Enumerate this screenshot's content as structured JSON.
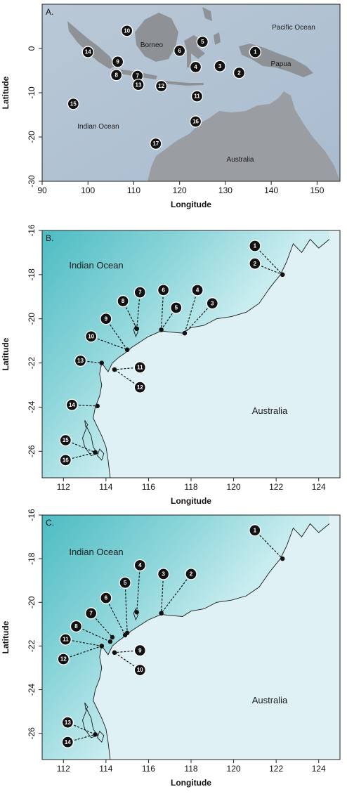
{
  "colors": {
    "ocean_shallow": "#d6eef2",
    "ocean_deep": "#5cc3c9",
    "land": "#cfd3d6",
    "land_dark": "#8d9296",
    "marker": "#111111"
  },
  "panelA": {
    "label": "A.",
    "xlabel": "Longitude",
    "ylabel": "Latitude",
    "xticks": [
      "90",
      "100",
      "110",
      "120",
      "130",
      "140",
      "150"
    ],
    "yticks": [
      "0",
      "-10",
      "-20",
      "-30"
    ],
    "regions": [
      "Pacific Ocean",
      "Borneo",
      "Papua",
      "Indian Ocean",
      "Australia"
    ],
    "sites": [
      {
        "n": "1",
        "lon": 136.5,
        "lat": -0.8
      },
      {
        "n": "2",
        "lon": 133.0,
        "lat": -5.5
      },
      {
        "n": "3",
        "lon": 128.8,
        "lat": -4.0
      },
      {
        "n": "4",
        "lon": 123.5,
        "lat": -4.2
      },
      {
        "n": "5",
        "lon": 125.0,
        "lat": 1.5
      },
      {
        "n": "6",
        "lon": 120.0,
        "lat": -0.5
      },
      {
        "n": "7",
        "lon": 110.8,
        "lat": -6.2
      },
      {
        "n": "8",
        "lon": 106.2,
        "lat": -6.0
      },
      {
        "n": "9",
        "lon": 106.5,
        "lat": -3.0
      },
      {
        "n": "10",
        "lon": 108.5,
        "lat": 4.0
      },
      {
        "n": "11",
        "lon": 123.8,
        "lat": -10.8
      },
      {
        "n": "12",
        "lon": 116.0,
        "lat": -8.5
      },
      {
        "n": "13",
        "lon": 111.0,
        "lat": -8.2
      },
      {
        "n": "14",
        "lon": 100.0,
        "lat": -0.8
      },
      {
        "n": "15",
        "lon": 96.8,
        "lat": -12.5
      },
      {
        "n": "16",
        "lon": 123.5,
        "lat": -16.5
      },
      {
        "n": "17",
        "lon": 114.8,
        "lat": -21.5
      }
    ]
  },
  "panelB": {
    "label": "B.",
    "xlabel": "Longitude",
    "ylabel": "Latitude",
    "xticks": [
      "112",
      "114",
      "116",
      "118",
      "120",
      "122",
      "124"
    ],
    "yticks": [
      "-16",
      "-18",
      "-20",
      "-22",
      "-24",
      "-26"
    ],
    "regions": [
      "Indian Ocean",
      "Australia"
    ],
    "sites": [
      {
        "n": "1",
        "lon": 121.0,
        "lat": -16.7,
        "tlon": 122.3,
        "tlat": -18.0
      },
      {
        "n": "2",
        "lon": 121.0,
        "lat": -17.5,
        "tlon": 122.3,
        "tlat": -18.0
      },
      {
        "n": "3",
        "lon": 119.0,
        "lat": -19.3,
        "tlon": 117.7,
        "tlat": -20.65
      },
      {
        "n": "4",
        "lon": 118.3,
        "lat": -18.7,
        "tlon": 117.7,
        "tlat": -20.65
      },
      {
        "n": "5",
        "lon": 117.3,
        "lat": -19.5,
        "tlon": 116.6,
        "tlat": -20.5
      },
      {
        "n": "6",
        "lon": 116.7,
        "lat": -18.7,
        "tlon": 116.6,
        "tlat": -20.5
      },
      {
        "n": "7",
        "lon": 115.6,
        "lat": -18.8,
        "tlon": 115.45,
        "tlat": -20.45
      },
      {
        "n": "8",
        "lon": 114.8,
        "lat": -19.2,
        "tlon": 115.45,
        "tlat": -20.45
      },
      {
        "n": "9",
        "lon": 114.0,
        "lat": -20.0,
        "tlon": 115.0,
        "tlat": -21.4
      },
      {
        "n": "10",
        "lon": 113.3,
        "lat": -20.8,
        "tlon": 115.0,
        "tlat": -21.4
      },
      {
        "n": "11",
        "lon": 115.6,
        "lat": -22.2,
        "tlon": 114.4,
        "tlat": -22.3
      },
      {
        "n": "12",
        "lon": 115.6,
        "lat": -23.1,
        "tlon": 114.4,
        "tlat": -22.3
      },
      {
        "n": "13",
        "lon": 112.8,
        "lat": -21.9,
        "tlon": 113.8,
        "tlat": -22.0
      },
      {
        "n": "14",
        "lon": 112.4,
        "lat": -23.9,
        "tlon": 113.6,
        "tlat": -23.95
      },
      {
        "n": "15",
        "lon": 112.1,
        "lat": -25.5,
        "tlon": 113.5,
        "tlat": -26.05
      },
      {
        "n": "16",
        "lon": 112.1,
        "lat": -26.4,
        "tlon": 113.5,
        "tlat": -26.05
      }
    ]
  },
  "panelC": {
    "label": "C.",
    "xlabel": "Longitude",
    "ylabel": "Latitude",
    "xticks": [
      "112",
      "114",
      "116",
      "118",
      "120",
      "122",
      "124"
    ],
    "yticks": [
      "-16",
      "-18",
      "-20",
      "-22",
      "-24",
      "-26"
    ],
    "regions": [
      "Indian Ocean",
      "Australia"
    ],
    "sites": [
      {
        "n": "1",
        "lon": 121.0,
        "lat": -16.7,
        "tlon": 122.3,
        "tlat": -18.0
      },
      {
        "n": "2",
        "lon": 118.0,
        "lat": -18.7,
        "tlon": 116.6,
        "tlat": -20.5
      },
      {
        "n": "3",
        "lon": 116.7,
        "lat": -18.7,
        "tlon": 116.6,
        "tlat": -20.5
      },
      {
        "n": "4",
        "lon": 115.6,
        "lat": -18.3,
        "tlon": 115.45,
        "tlat": -20.45
      },
      {
        "n": "5",
        "lon": 114.9,
        "lat": -19.1,
        "tlon": 115.0,
        "tlat": -21.4
      },
      {
        "n": "6",
        "lon": 114.0,
        "lat": -19.8,
        "tlon": 114.9,
        "tlat": -21.5
      },
      {
        "n": "7",
        "lon": 113.3,
        "lat": -20.5,
        "tlon": 114.3,
        "tlat": -21.6
      },
      {
        "n": "8",
        "lon": 112.6,
        "lat": -21.1,
        "tlon": 114.2,
        "tlat": -21.8
      },
      {
        "n": "9",
        "lon": 115.6,
        "lat": -22.2,
        "tlon": 114.4,
        "tlat": -22.3
      },
      {
        "n": "10",
        "lon": 115.6,
        "lat": -23.1,
        "tlon": 114.4,
        "tlat": -22.3
      },
      {
        "n": "11",
        "lon": 112.1,
        "lat": -21.7,
        "tlon": 113.8,
        "tlat": -22.0
      },
      {
        "n": "12",
        "lon": 112.0,
        "lat": -22.6,
        "tlon": 113.8,
        "tlat": -22.0
      },
      {
        "n": "13",
        "lon": 112.2,
        "lat": -25.5,
        "tlon": 113.5,
        "tlat": -26.05
      },
      {
        "n": "14",
        "lon": 112.2,
        "lat": -26.4,
        "tlon": 113.5,
        "tlat": -26.05
      }
    ]
  }
}
